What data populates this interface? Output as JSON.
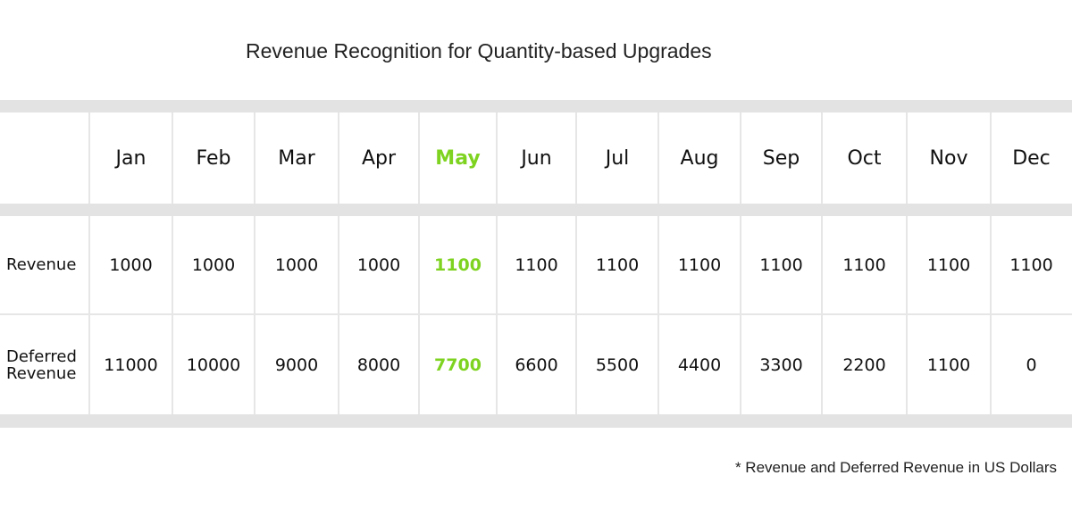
{
  "title": "Revenue Recognition for Quantity-based Upgrades",
  "footnote": "* Revenue and Deferred Revenue in US Dollars",
  "highlight_color": "#7ed321",
  "band_color": "#e3e3e3",
  "highlight_month": "May",
  "chart_data": {
    "type": "table",
    "title": "Revenue Recognition for Quantity-based Upgrades",
    "columns": [
      "Jan",
      "Feb",
      "Mar",
      "Apr",
      "May",
      "Jun",
      "Jul",
      "Aug",
      "Sep",
      "Oct",
      "Nov",
      "Dec"
    ],
    "rows": [
      {
        "label": "Revenue",
        "values": [
          1000,
          1000,
          1000,
          1000,
          1100,
          1100,
          1100,
          1100,
          1100,
          1100,
          1100,
          1100
        ]
      },
      {
        "label": "Deferred Revenue",
        "values": [
          11000,
          10000,
          9000,
          8000,
          7700,
          6600,
          5500,
          4400,
          3300,
          2200,
          1100,
          0
        ]
      }
    ],
    "highlighted_column": "May"
  }
}
